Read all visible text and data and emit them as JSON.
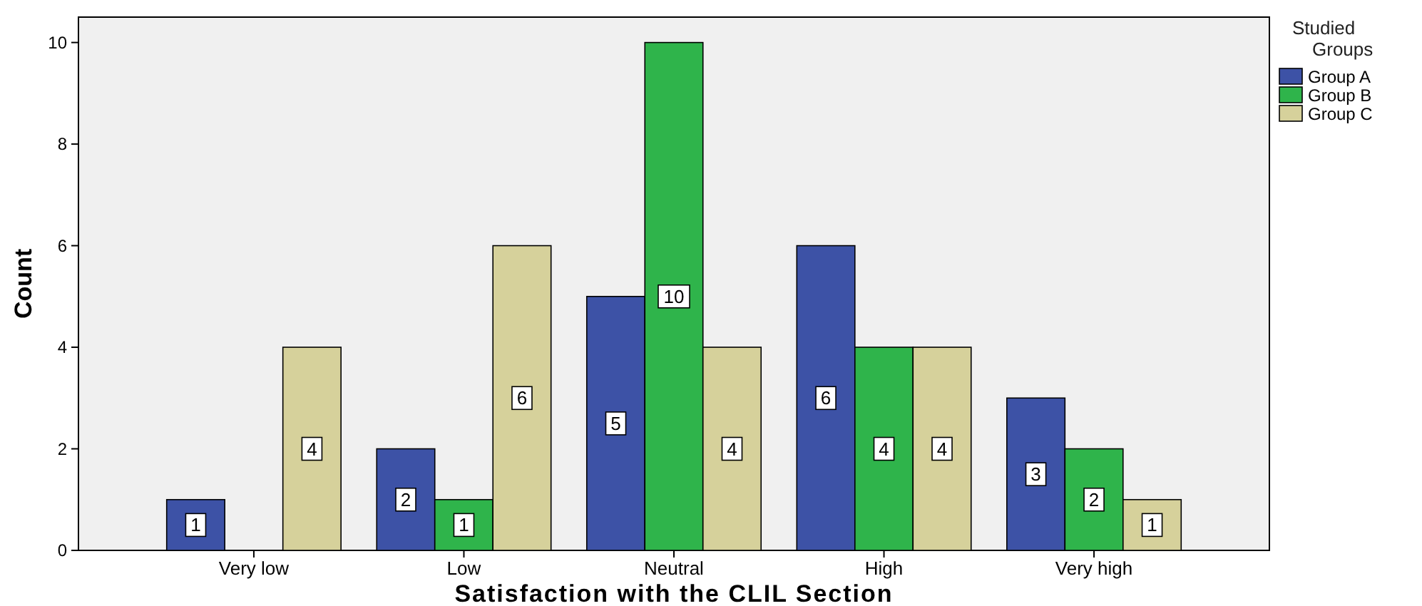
{
  "chart_data": {
    "type": "bar",
    "xlabel": "Satisfaction with the CLIL Section",
    "ylabel": "Count",
    "legend_title": "Studied Groups",
    "categories": [
      "Very low",
      "Low",
      "Neutral",
      "High",
      "Very high"
    ],
    "series": [
      {
        "name": "Group A",
        "color": "#3d52a6",
        "values": [
          1,
          2,
          5,
          6,
          3
        ],
        "value_labels": [
          "1",
          "2",
          "5",
          "6",
          "3"
        ]
      },
      {
        "name": "Group B",
        "color": "#2fb44b",
        "values": [
          0,
          1,
          10,
          4,
          2
        ],
        "value_labels": [
          null,
          "1",
          "10",
          "4",
          "2"
        ]
      },
      {
        "name": "Group C",
        "color": "#d6d19b",
        "values": [
          4,
          6,
          4,
          4,
          1
        ],
        "value_labels": [
          "4",
          "6",
          "4",
          "4",
          "1"
        ]
      }
    ],
    "ylim": [
      0,
      10.5
    ],
    "yticks": [
      0,
      2,
      4,
      6,
      8,
      10
    ],
    "grid": false,
    "legend": "top right"
  }
}
